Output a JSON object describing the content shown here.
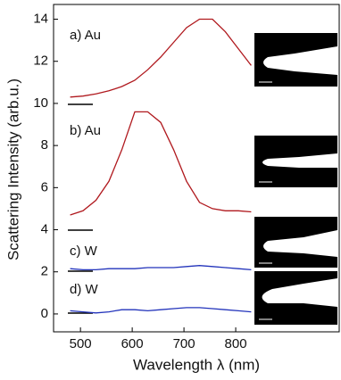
{
  "chart_data": {
    "type": "line",
    "xlabel": "Wavelength λ (nm)",
    "ylabel": "Scattering Intensity (arb.u.)",
    "x": [
      480,
      505,
      530,
      555,
      580,
      605,
      630,
      655,
      680,
      705,
      730,
      755,
      780,
      805,
      830
    ],
    "series": [
      {
        "name": "a) Au",
        "color": "#b0191e",
        "values": [
          10.3,
          10.35,
          10.45,
          10.6,
          10.8,
          11.1,
          11.6,
          12.2,
          12.9,
          13.6,
          14.0,
          14.0,
          13.4,
          12.6,
          11.8
        ]
      },
      {
        "name": "b) Au",
        "color": "#b0191e",
        "values": [
          4.7,
          4.9,
          5.4,
          6.3,
          7.8,
          9.6,
          9.6,
          9.1,
          7.8,
          6.3,
          5.3,
          5.0,
          4.9,
          4.9,
          4.85
        ]
      },
      {
        "name": "c) W",
        "color": "#2233bb",
        "values": [
          2.15,
          2.1,
          2.1,
          2.15,
          2.15,
          2.15,
          2.2,
          2.2,
          2.2,
          2.25,
          2.3,
          2.25,
          2.2,
          2.15,
          2.1
        ]
      },
      {
        "name": "d) W",
        "color": "#2233bb",
        "values": [
          0.15,
          0.1,
          0.05,
          0.1,
          0.2,
          0.2,
          0.15,
          0.2,
          0.25,
          0.3,
          0.3,
          0.25,
          0.2,
          0.15,
          0.1
        ]
      }
    ],
    "xlim": [
      448,
      1000
    ],
    "xticks": [
      500,
      600,
      700,
      800
    ],
    "ylim": [
      -0.85,
      14.7
    ],
    "yticks": [
      0,
      2,
      4,
      6,
      8,
      10,
      12,
      14
    ]
  }
}
